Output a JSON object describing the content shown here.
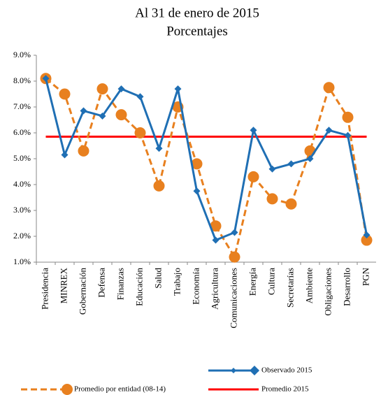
{
  "chart_data": {
    "type": "line",
    "subtitle": "Al 31 de enero de 2015",
    "units_title": "Porcentajes",
    "categories": [
      "Presidencia",
      "MINREX",
      "Gobernación",
      "Defensa",
      "Finanzas",
      "Educación",
      "Salud",
      "Trabajo",
      "Economía",
      "Agricultura",
      "Comunicaciones",
      "Energía",
      "Cultura",
      "Secretarías",
      "Ambiente",
      "Obligaciones",
      "Desarrollo",
      "PGN"
    ],
    "series": [
      {
        "name": "Observado 2015",
        "color": "#1f6fb4",
        "style": "solid",
        "marker": "diamond",
        "values": [
          8.1,
          5.15,
          6.85,
          6.65,
          7.7,
          7.4,
          5.4,
          7.7,
          3.75,
          1.85,
          2.15,
          6.1,
          4.6,
          4.8,
          5.0,
          6.1,
          5.9,
          2.05
        ]
      },
      {
        "name": "Promedio por entidad (08-14)",
        "color": "#e8801f",
        "style": "dashed",
        "marker": "circle",
        "values": [
          8.1,
          7.5,
          5.3,
          7.7,
          6.7,
          6.0,
          3.95,
          7.0,
          4.8,
          2.4,
          1.2,
          4.3,
          3.45,
          3.25,
          5.3,
          7.75,
          6.6,
          1.85
        ]
      },
      {
        "name": "Promedio 2015",
        "color": "#ff0000",
        "style": "solid",
        "marker": "none",
        "values": [
          5.85,
          5.85,
          5.85,
          5.85,
          5.85,
          5.85,
          5.85,
          5.85,
          5.85,
          5.85,
          5.85,
          5.85,
          5.85,
          5.85,
          5.85,
          5.85,
          5.85,
          5.85
        ]
      }
    ],
    "ylim": [
      1,
      9
    ],
    "yticks": [
      {
        "value": 1,
        "label": "1.0%"
      },
      {
        "value": 2,
        "label": "2.0%"
      },
      {
        "value": 3,
        "label": "3.0%"
      },
      {
        "value": 4,
        "label": "4.0%"
      },
      {
        "value": 5,
        "label": "5.0%"
      },
      {
        "value": 6,
        "label": "6.0%"
      },
      {
        "value": 7,
        "label": "7.0%"
      },
      {
        "value": 8,
        "label": "8.0%"
      },
      {
        "value": 9,
        "label": "9.0%"
      }
    ],
    "grid": false
  }
}
